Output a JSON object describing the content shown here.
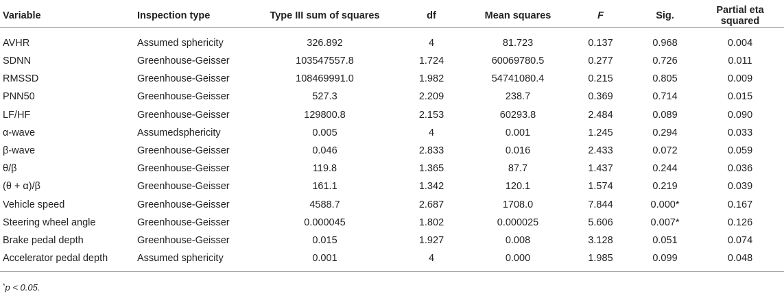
{
  "table": {
    "headers": {
      "variable": "Variable",
      "inspection_type": "Inspection type",
      "ss": "Type III sum of squares",
      "df": "df",
      "ms": "Mean squares",
      "f": "F",
      "sig": "Sig.",
      "eta": "Partial eta squared"
    },
    "rows": [
      {
        "variable": "AVHR",
        "inspection_type": "Assumed sphericity",
        "ss": "326.892",
        "df": "4",
        "ms": "81.723",
        "f": "0.137",
        "sig": "0.968",
        "eta": "0.004"
      },
      {
        "variable": "SDNN",
        "inspection_type": "Greenhouse-Geisser",
        "ss": "103547557.8",
        "df": "1.724",
        "ms": "60069780.5",
        "f": "0.277",
        "sig": "0.726",
        "eta": "0.011"
      },
      {
        "variable": "RMSSD",
        "inspection_type": "Greenhouse-Geisser",
        "ss": "108469991.0",
        "df": "1.982",
        "ms": "54741080.4",
        "f": "0.215",
        "sig": "0.805",
        "eta": "0.009"
      },
      {
        "variable": "PNN50",
        "inspection_type": "Greenhouse-Geisser",
        "ss": "527.3",
        "df": "2.209",
        "ms": "238.7",
        "f": "0.369",
        "sig": "0.714",
        "eta": "0.015"
      },
      {
        "variable": "LF/HF",
        "inspection_type": "Greenhouse-Geisser",
        "ss": "129800.8",
        "df": "2.153",
        "ms": "60293.8",
        "f": "2.484",
        "sig": "0.089",
        "eta": "0.090"
      },
      {
        "variable": "α-wave",
        "inspection_type": "Assumedsphericity",
        "ss": "0.005",
        "df": "4",
        "ms": "0.001",
        "f": "1.245",
        "sig": "0.294",
        "eta": "0.033"
      },
      {
        "variable": "β-wave",
        "inspection_type": "Greenhouse-Geisser",
        "ss": "0.046",
        "df": "2.833",
        "ms": "0.016",
        "f": "2.433",
        "sig": "0.072",
        "eta": "0.059"
      },
      {
        "variable": "θ/β",
        "inspection_type": "Greenhouse-Geisser",
        "ss": "119.8",
        "df": "1.365",
        "ms": "87.7",
        "f": "1.437",
        "sig": "0.244",
        "eta": "0.036"
      },
      {
        "variable": "(θ + α)/β",
        "inspection_type": "Greenhouse-Geisser",
        "ss": "161.1",
        "df": "1.342",
        "ms": "120.1",
        "f": "1.574",
        "sig": "0.219",
        "eta": "0.039"
      },
      {
        "variable": "Vehicle speed",
        "inspection_type": "Greenhouse-Geisser",
        "ss": "4588.7",
        "df": "2.687",
        "ms": "1708.0",
        "f": "7.844",
        "sig": "0.000*",
        "eta": "0.167"
      },
      {
        "variable": "Steering wheel angle",
        "inspection_type": "Greenhouse-Geisser",
        "ss": "0.000045",
        "df": "1.802",
        "ms": "0.000025",
        "f": "5.606",
        "sig": "0.007*",
        "eta": "0.126"
      },
      {
        "variable": "Brake pedal depth",
        "inspection_type": "Greenhouse-Geisser",
        "ss": "0.015",
        "df": "1.927",
        "ms": "0.008",
        "f": "3.128",
        "sig": "0.051",
        "eta": "0.074"
      },
      {
        "variable": "Accelerator pedal depth",
        "inspection_type": "Assumed sphericity",
        "ss": "0.001",
        "df": "4",
        "ms": "0.000",
        "f": "1.985",
        "sig": "0.099",
        "eta": "0.048"
      }
    ]
  },
  "footnote": {
    "marker": "*",
    "text": "p < 0.05."
  }
}
